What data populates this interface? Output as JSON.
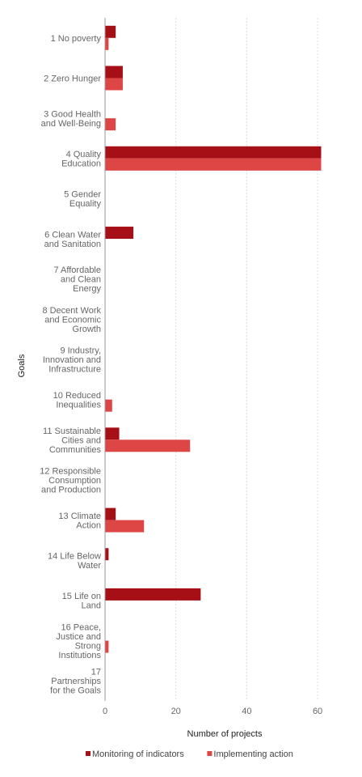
{
  "chart_data": {
    "type": "bar",
    "orientation": "horizontal",
    "xlabel": "Number of projects",
    "ylabel": "Goals",
    "xlim": [
      0,
      65
    ],
    "xticks": [
      0,
      20,
      40,
      60
    ],
    "grid": "vertical",
    "legend_position": "bottom",
    "categories": [
      [
        "1 No poverty"
      ],
      [
        "2 Zero Hunger"
      ],
      [
        "3 Good Health",
        "and Well-Being"
      ],
      [
        "4 Quality",
        "Education"
      ],
      [
        "5 Gender",
        "Equality"
      ],
      [
        "6 Clean Water",
        "and Sanitation"
      ],
      [
        "7 Affordable",
        "and Clean",
        "Energy"
      ],
      [
        "8 Decent Work",
        "and Economic",
        "Growth"
      ],
      [
        "9 Industry,",
        "Innovation and",
        "Infrastructure"
      ],
      [
        "10 Reduced",
        "Inequalities"
      ],
      [
        "11 Sustainable",
        "Cities and",
        "Communities"
      ],
      [
        "12 Responsible",
        "Consumption",
        "and Production"
      ],
      [
        "13 Climate",
        "Action"
      ],
      [
        "14 Life Below",
        "Water"
      ],
      [
        "15 Life on",
        "Land"
      ],
      [
        "16 Peace,",
        "Justice and",
        "Strong",
        "Institutions"
      ],
      [
        "17",
        "Partnerships",
        "for the Goals"
      ]
    ],
    "series": [
      {
        "name": "Monitoring of indicators",
        "color": "#a50f15",
        "values": [
          3,
          5,
          0,
          61,
          0,
          8,
          0,
          0,
          0,
          0,
          4,
          0,
          3,
          1,
          27,
          0,
          0
        ]
      },
      {
        "name": "Implementing action",
        "color": "#de4545",
        "values": [
          1,
          5,
          3,
          61,
          0,
          0,
          0,
          0,
          0,
          2,
          24,
          0,
          11,
          0,
          0,
          1,
          0
        ]
      }
    ]
  }
}
